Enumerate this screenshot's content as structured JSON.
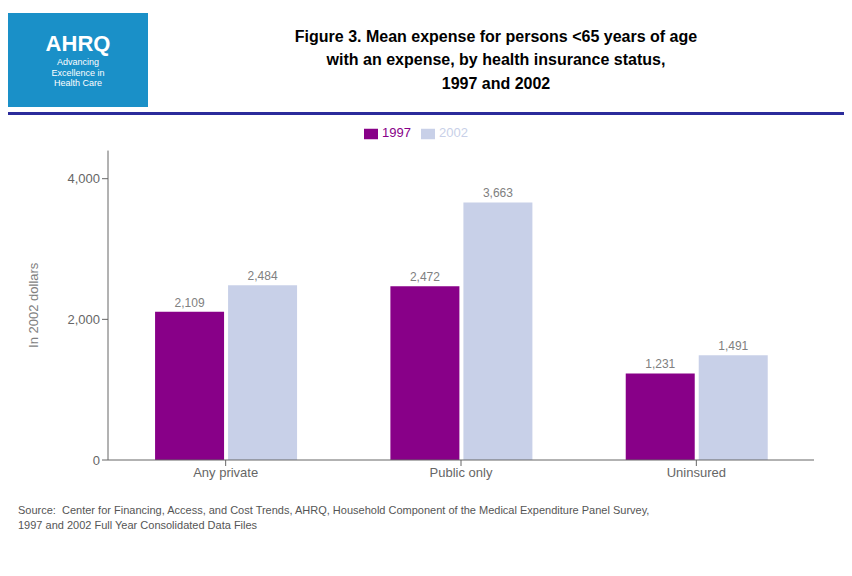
{
  "chart_data": {
    "type": "bar",
    "title": "Figure 3. Mean expense for persons <65 years of age\nwith an expense, by health insurance status,\n1997 and 2002",
    "categories": [
      "Any private",
      "Public only",
      "Uninsured"
    ],
    "series": [
      {
        "name": "1997",
        "color": "#880088",
        "values": [
          2109,
          2472,
          1231
        ],
        "value_labels": [
          "2,109",
          "2,472",
          "1,231"
        ]
      },
      {
        "name": "2002",
        "color": "#c8d0e8",
        "values": [
          2484,
          3663,
          1491
        ],
        "value_labels": [
          "2,484",
          "3,663",
          "1,491"
        ]
      }
    ],
    "ylabel": "In 2002 dollars",
    "ylim": [
      0,
      4400
    ],
    "yticks": [
      0,
      {
        "value": 2000,
        "label": "2,000"
      },
      {
        "value": 4000,
        "label": "4,000"
      }
    ],
    "grid": false,
    "legend": "top",
    "data_labels": true,
    "annotations": [
      "AHRQ",
      "Advancing\nExcellence in\nHealth Care",
      "Source:  Center for Financing, Access, and Cost Trends, AHRQ, Household Component of the Medical Expenditure Panel Survey,\n1997 and 2002 Full Year Consolidated Data Files"
    ]
  }
}
